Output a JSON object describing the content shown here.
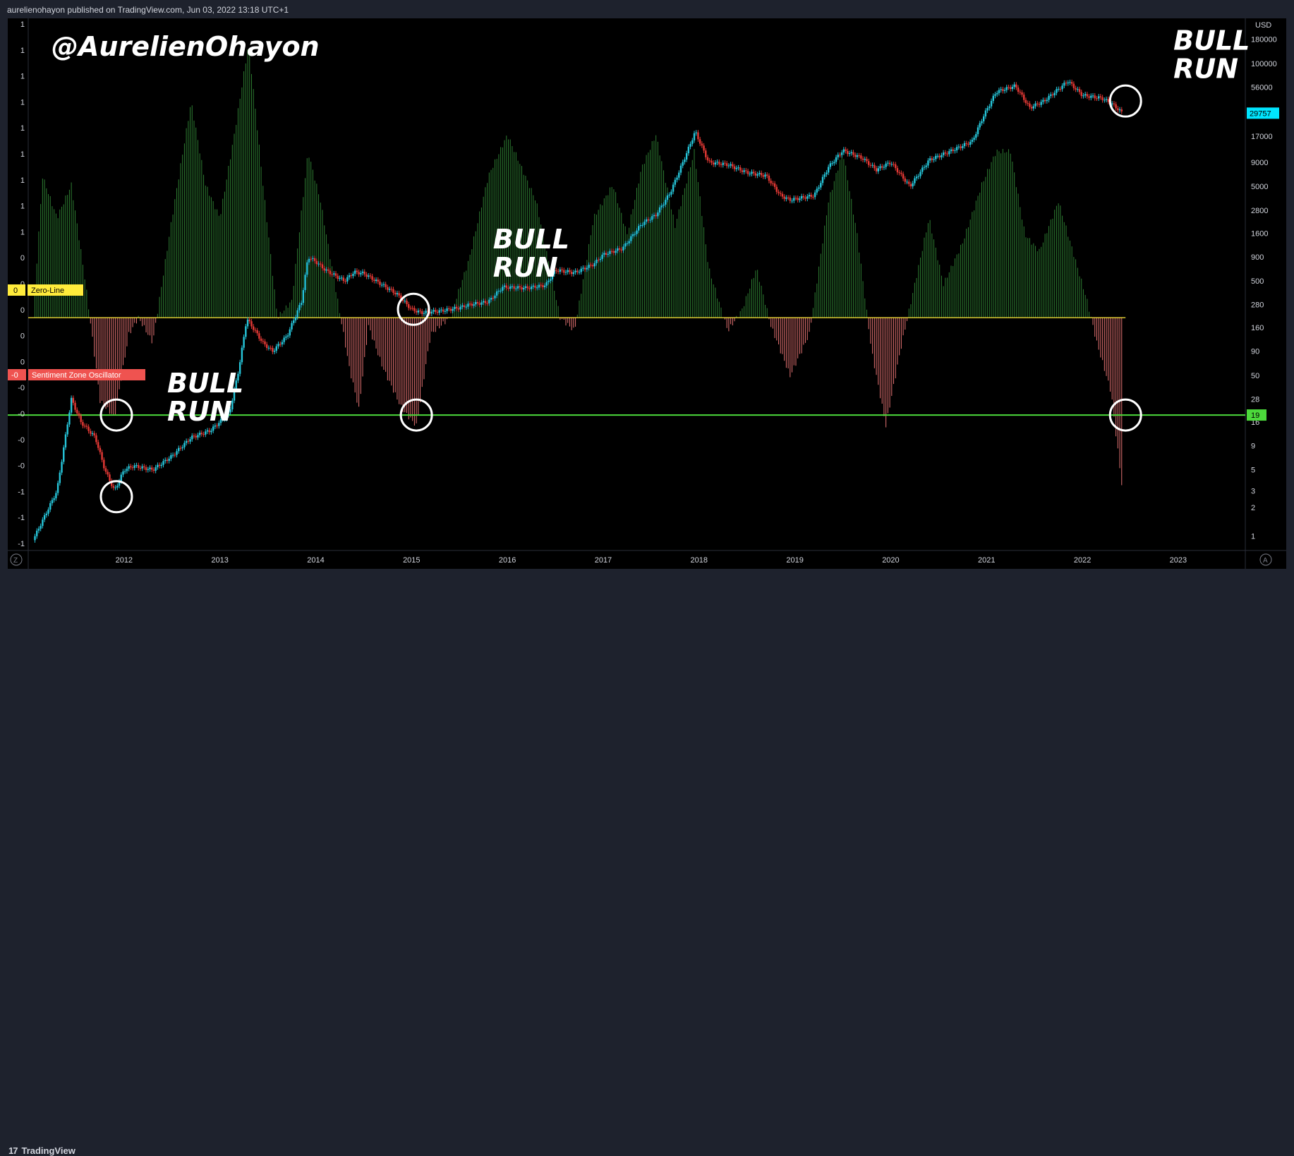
{
  "header": {
    "publish_text": "aurelienohayon published on TradingView.com, Jun 03, 2022 13:18 UTC+1"
  },
  "footer": {
    "brand": "TradingView",
    "logo_glyph": "17"
  },
  "chart_data": {
    "type": "candlestick+histogram",
    "title": "@AurelienOhayon",
    "price_axis": {
      "unit": "USD",
      "scale": "log",
      "ylim": [
        0.7,
        300000
      ],
      "ticks": [
        180000,
        100000,
        56000,
        30000,
        17000,
        9000,
        5000,
        2800,
        1600,
        900,
        500,
        280,
        160,
        90,
        50,
        28,
        16,
        9,
        5,
        3,
        2,
        1
      ],
      "tick_labels": [
        "180000",
        "100000",
        "56000",
        "29757",
        "17000",
        "9000",
        "5000",
        "2800",
        "1600",
        "900",
        "500",
        "280",
        "160",
        "90",
        "50",
        "28",
        "16",
        "9",
        "5",
        "3",
        "2",
        "1"
      ],
      "last_price": "29757",
      "last_price_value": 29757,
      "level_line": {
        "value": 19,
        "label": "19",
        "color": "#4cd93b"
      }
    },
    "oscillator_axis": {
      "tick_labels": [
        "1",
        "1",
        "1",
        "1",
        "1",
        "1",
        "1",
        "1",
        "1",
        "0",
        "0",
        "0",
        "0",
        "0",
        "-0",
        "-0",
        "-0",
        "-0",
        "-1",
        "-1",
        "-1"
      ],
      "zero_label_value": "0",
      "zero_label": "Zero-Line",
      "szo_label_value": "-0",
      "szo_label": "Sentiment Zone Oscillator",
      "range": [
        -1.4,
        1.8
      ]
    },
    "x_axis": {
      "range": [
        2011.0,
        2023.7
      ],
      "ticks": [
        2012,
        2013,
        2014,
        2015,
        2016,
        2017,
        2018,
        2019,
        2020,
        2021,
        2022,
        2023
      ],
      "tick_labels": [
        "2012",
        "2013",
        "2014",
        "2015",
        "2016",
        "2017",
        "2018",
        "2019",
        "2020",
        "2021",
        "2022",
        "2023"
      ]
    },
    "price_series_points": [
      [
        2011.05,
        0.9
      ],
      [
        2011.3,
        3
      ],
      [
        2011.45,
        28
      ],
      [
        2011.55,
        16
      ],
      [
        2011.7,
        11
      ],
      [
        2011.8,
        5
      ],
      [
        2011.9,
        3
      ],
      [
        2012.0,
        5
      ],
      [
        2012.1,
        5.5
      ],
      [
        2012.3,
        5
      ],
      [
        2012.5,
        7
      ],
      [
        2012.7,
        11
      ],
      [
        2012.9,
        13
      ],
      [
        2013.1,
        20
      ],
      [
        2013.2,
        60
      ],
      [
        2013.28,
        200
      ],
      [
        2013.45,
        110
      ],
      [
        2013.55,
        90
      ],
      [
        2013.7,
        130
      ],
      [
        2013.85,
        300
      ],
      [
        2013.92,
        900
      ],
      [
        2014.0,
        800
      ],
      [
        2014.1,
        650
      ],
      [
        2014.3,
        500
      ],
      [
        2014.4,
        620
      ],
      [
        2014.5,
        600
      ],
      [
        2014.7,
        450
      ],
      [
        2014.85,
        360
      ],
      [
        2015.0,
        250
      ],
      [
        2015.1,
        230
      ],
      [
        2015.3,
        240
      ],
      [
        2015.5,
        260
      ],
      [
        2015.6,
        280
      ],
      [
        2015.8,
        300
      ],
      [
        2015.95,
        430
      ],
      [
        2016.2,
        420
      ],
      [
        2016.4,
        450
      ],
      [
        2016.5,
        650
      ],
      [
        2016.7,
        610
      ],
      [
        2016.9,
        750
      ],
      [
        2017.0,
        950
      ],
      [
        2017.2,
        1100
      ],
      [
        2017.4,
        2000
      ],
      [
        2017.55,
        2500
      ],
      [
        2017.7,
        4300
      ],
      [
        2017.85,
        10000
      ],
      [
        2017.96,
        19000
      ],
      [
        2018.1,
        9000
      ],
      [
        2018.3,
        8500
      ],
      [
        2018.5,
        7000
      ],
      [
        2018.7,
        6500
      ],
      [
        2018.85,
        4000
      ],
      [
        2018.95,
        3600
      ],
      [
        2019.2,
        4000
      ],
      [
        2019.35,
        8000
      ],
      [
        2019.5,
        12000
      ],
      [
        2019.7,
        10000
      ],
      [
        2019.85,
        7500
      ],
      [
        2020.0,
        9000
      ],
      [
        2020.2,
        5000
      ],
      [
        2020.4,
        9500
      ],
      [
        2020.6,
        11500
      ],
      [
        2020.85,
        15000
      ],
      [
        2020.97,
        28000
      ],
      [
        2021.1,
        50000
      ],
      [
        2021.3,
        58000
      ],
      [
        2021.45,
        34000
      ],
      [
        2021.6,
        40000
      ],
      [
        2021.85,
        65000
      ],
      [
        2022.0,
        46000
      ],
      [
        2022.2,
        43000
      ],
      [
        2022.3,
        38000
      ],
      [
        2022.42,
        29757
      ]
    ],
    "oscillator_peaks": [
      [
        2011.05,
        0.0
      ],
      [
        2011.15,
        0.85
      ],
      [
        2011.3,
        0.6
      ],
      [
        2011.45,
        0.8
      ],
      [
        2011.6,
        0.2
      ],
      [
        2011.75,
        -0.5
      ],
      [
        2011.9,
        -0.6
      ],
      [
        2012.05,
        -0.1
      ],
      [
        2012.15,
        0.0
      ],
      [
        2012.3,
        -0.15
      ],
      [
        2012.5,
        0.6
      ],
      [
        2012.7,
        1.3
      ],
      [
        2012.85,
        0.8
      ],
      [
        2013.0,
        0.6
      ],
      [
        2013.15,
        1.1
      ],
      [
        2013.3,
        1.65
      ],
      [
        2013.45,
        0.8
      ],
      [
        2013.6,
        0.0
      ],
      [
        2013.75,
        0.1
      ],
      [
        2013.92,
        1.0
      ],
      [
        2014.05,
        0.7
      ],
      [
        2014.2,
        0.2
      ],
      [
        2014.35,
        -0.3
      ],
      [
        2014.45,
        -0.55
      ],
      [
        2014.55,
        -0.05
      ],
      [
        2014.7,
        -0.3
      ],
      [
        2014.9,
        -0.55
      ],
      [
        2015.05,
        -0.65
      ],
      [
        2015.2,
        -0.1
      ],
      [
        2015.4,
        0.0
      ],
      [
        2015.6,
        0.35
      ],
      [
        2015.8,
        0.85
      ],
      [
        2016.0,
        1.1
      ],
      [
        2016.3,
        0.7
      ],
      [
        2016.55,
        0.0
      ],
      [
        2016.7,
        -0.08
      ],
      [
        2016.9,
        0.6
      ],
      [
        2017.1,
        0.8
      ],
      [
        2017.25,
        0.5
      ],
      [
        2017.4,
        0.9
      ],
      [
        2017.55,
        1.1
      ],
      [
        2017.75,
        0.55
      ],
      [
        2017.95,
        1.0
      ],
      [
        2018.1,
        0.3
      ],
      [
        2018.3,
        -0.08
      ],
      [
        2018.45,
        0.05
      ],
      [
        2018.6,
        0.3
      ],
      [
        2018.75,
        -0.05
      ],
      [
        2018.95,
        -0.35
      ],
      [
        2019.15,
        -0.1
      ],
      [
        2019.35,
        0.7
      ],
      [
        2019.5,
        1.0
      ],
      [
        2019.65,
        0.5
      ],
      [
        2019.8,
        -0.2
      ],
      [
        2019.95,
        -0.65
      ],
      [
        2020.1,
        -0.2
      ],
      [
        2020.25,
        0.2
      ],
      [
        2020.4,
        0.6
      ],
      [
        2020.55,
        0.2
      ],
      [
        2020.75,
        0.45
      ],
      [
        2020.95,
        0.8
      ],
      [
        2021.1,
        1.0
      ],
      [
        2021.25,
        1.0
      ],
      [
        2021.4,
        0.5
      ],
      [
        2021.55,
        0.4
      ],
      [
        2021.75,
        0.7
      ],
      [
        2021.95,
        0.3
      ],
      [
        2022.05,
        0.1
      ],
      [
        2022.15,
        -0.15
      ],
      [
        2022.3,
        -0.45
      ],
      [
        2022.42,
        -1.05
      ]
    ],
    "annotations": [
      {
        "text_line1": "BULL",
        "text_line2": "RUN",
        "year": 2022.95,
        "price": 140000
      },
      {
        "text_line1": "BULL",
        "text_line2": "RUN",
        "year": 2015.85,
        "price": 1100
      },
      {
        "text_line1": "BULL",
        "text_line2": "RUN",
        "year": 2012.45,
        "price": 33
      }
    ],
    "circles": [
      {
        "year": 2011.92,
        "price": 19
      },
      {
        "year": 2011.92,
        "price": 2.6
      },
      {
        "year": 2015.02,
        "price": 250
      },
      {
        "year": 2015.05,
        "price": 19
      },
      {
        "year": 2022.45,
        "price": 40000
      },
      {
        "year": 2022.45,
        "price": 19
      }
    ],
    "colors": {
      "up": "#26c6da",
      "down": "#e53935",
      "osc_up": "#2e7d32",
      "osc_down": "#e57373",
      "zero_line": "#ffeb3b"
    }
  }
}
